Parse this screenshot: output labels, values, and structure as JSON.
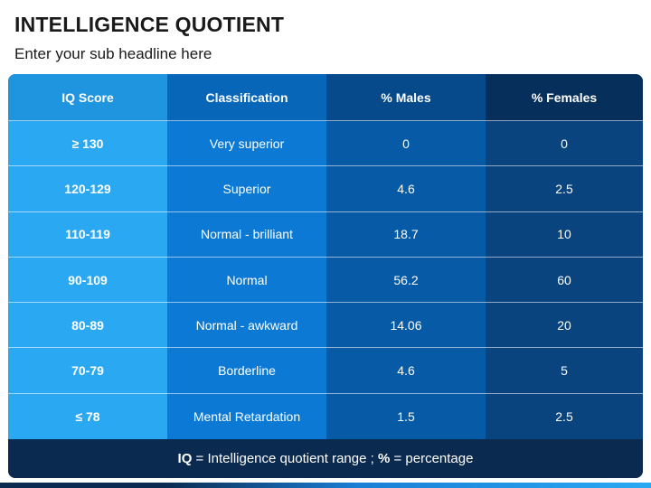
{
  "header": {
    "title": "INTELLIGENCE QUOTIENT",
    "subtitle": "Enter your sub headline here"
  },
  "table": {
    "columns": [
      "IQ Score",
      "Classification",
      "% Males",
      "% Females"
    ],
    "rows": [
      [
        "≥ 130",
        "Very superior",
        "0",
        "0"
      ],
      [
        "120-129",
        "Superior",
        "4.6",
        "2.5"
      ],
      [
        "110-119",
        "Normal - brilliant",
        "18.7",
        "10"
      ],
      [
        "90-109",
        "Normal",
        "56.2",
        "60"
      ],
      [
        "80-89",
        "Normal - awkward",
        "14.06",
        "20"
      ],
      [
        "70-79",
        "Borderline",
        "4.6",
        "5"
      ],
      [
        "≤ 78",
        "Mental Retardation",
        "1.5",
        "2.5"
      ]
    ]
  },
  "footer": {
    "iq_abbr": "IQ",
    "iq_def": " = Intelligence quotient range ; ",
    "pct_abbr": "%",
    "pct_def": " = percentage"
  },
  "colors": {
    "col1": "#2aa9f2",
    "col2": "#0c7ad4",
    "col3": "#075aa6",
    "col4": "#0a447f",
    "footer_bg": "#0a2a4f"
  }
}
